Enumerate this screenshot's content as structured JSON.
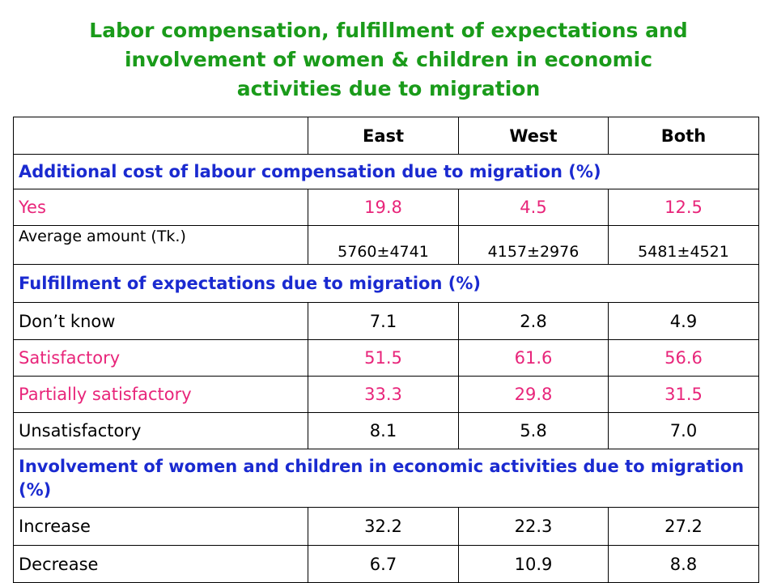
{
  "title": {
    "line1": "Labor compensation, fulfillment of expectations and",
    "line2": "involvement of women & children in economic",
    "line3": "activities due to migration"
  },
  "colors": {
    "title": "#1a9b1a",
    "section_header": "#1a2ad0",
    "highlight_rows": "#e8257a",
    "text": "#000000"
  },
  "table": {
    "columns": [
      "",
      "East",
      "West",
      "Both"
    ],
    "sections": [
      {
        "header": "Additional cost of labour compensation due to migration (%)",
        "rows": [
          {
            "label": "Yes",
            "east": "19.8",
            "west": "4.5",
            "both": "12.5"
          },
          {
            "label": "Average amount (Tk.)",
            "east": "5760±4741",
            "west": "4157±2976",
            "both": "5481±4521"
          }
        ]
      },
      {
        "header": "Fulfillment of expectations due to migration (%)",
        "rows": [
          {
            "label": "Don’t know",
            "east": "7.1",
            "west": "2.8",
            "both": "4.9"
          },
          {
            "label": "Satisfactory",
            "east": "51.5",
            "west": "61.6",
            "both": "56.6"
          },
          {
            "label": "Partially satisfactory",
            "east": "33.3",
            "west": "29.8",
            "both": "31.5"
          },
          {
            "label": "Unsatisfactory",
            "east": "8.1",
            "west": "5.8",
            "both": "7.0"
          }
        ]
      },
      {
        "header": "Involvement of women and children in economic activities due to migration (%)",
        "rows": [
          {
            "label": "Increase",
            "east": "32.2",
            "west": "22.3",
            "both": "27.2"
          },
          {
            "label": "Decrease",
            "east": "6.7",
            "west": "10.9",
            "both": "8.8"
          }
        ]
      }
    ]
  }
}
